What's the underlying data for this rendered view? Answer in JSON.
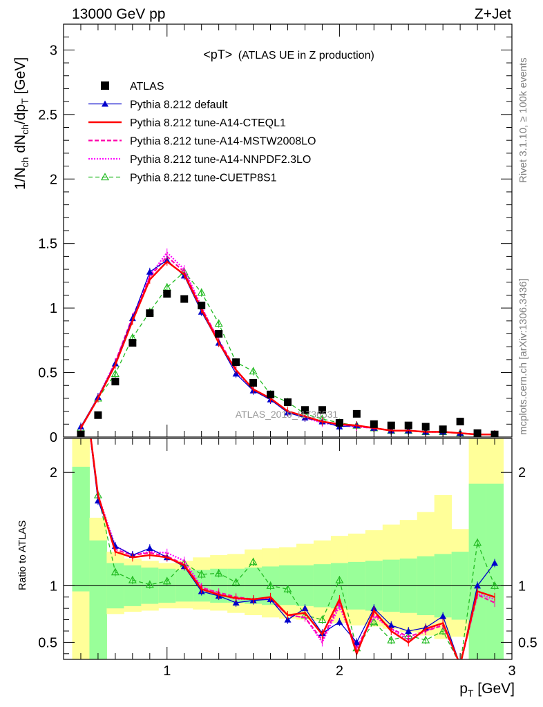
{
  "header": {
    "left": "13000 GeV pp",
    "right": "Z+Jet"
  },
  "side_text": {
    "top": "Rivet 3.1.10, ≥ 100k events",
    "bottom": "mcplots.cern.ch [arXiv:1306.3436]"
  },
  "plot_title": {
    "main": "<pT>",
    "sub": "(ATLAS UE in Z production)"
  },
  "watermark": "ATLAS_2019_I1736531",
  "ylabel_top": "1/N_ch dN_ch/dp_T [GeV]",
  "ylabel_bottom": "Ratio to ATLAS",
  "xlabel": "p_T [GeV]",
  "colors": {
    "atlas": "#000000",
    "default": "#0000cc",
    "cteql1": "#ff0000",
    "mstw": "#ff00aa",
    "nnpdf": "#ff00ff",
    "cuetp8s1": "#22bb22",
    "band_inner": "#99ff99",
    "band_outer": "#ffff99"
  },
  "legend": [
    {
      "key": "atlas",
      "label": "ATLAS"
    },
    {
      "key": "default",
      "label": "Pythia 8.212 default"
    },
    {
      "key": "cteql1",
      "label": "Pythia 8.212 tune-A14-CTEQL1"
    },
    {
      "key": "mstw",
      "label": "Pythia 8.212 tune-A14-MSTW2008LO"
    },
    {
      "key": "nnpdf",
      "label": "Pythia 8.212 tune-A14-NNPDF2.3LO"
    },
    {
      "key": "cuetp8s1",
      "label": "Pythia 8.212 tune-CUETP8S1"
    }
  ],
  "chart_data": {
    "type": "line",
    "xlim": [
      0.4,
      3.0
    ],
    "x_ticks": [
      "1",
      "2",
      "3"
    ],
    "top": {
      "ylim": [
        0,
        3.2
      ],
      "y_ticks": [
        "0",
        "0.5",
        "1",
        "1.5",
        "2",
        "2.5",
        "3"
      ]
    },
    "ratio": {
      "ylim": [
        0.35,
        2.3
      ],
      "y_ticks": [
        "0.5",
        "1",
        "2"
      ]
    },
    "x": [
      0.5,
      0.6,
      0.7,
      0.8,
      0.9,
      1.0,
      1.1,
      1.2,
      1.3,
      1.4,
      1.5,
      1.6,
      1.7,
      1.8,
      1.9,
      2.0,
      2.1,
      2.2,
      2.3,
      2.4,
      2.5,
      2.6,
      2.7,
      2.8,
      2.9
    ],
    "series": [
      {
        "key": "atlas",
        "name": "ATLAS",
        "values": [
          0.02,
          0.17,
          0.43,
          0.73,
          0.96,
          1.11,
          1.07,
          1.02,
          0.8,
          0.58,
          0.42,
          0.33,
          0.27,
          0.21,
          0.21,
          0.11,
          0.18,
          0.1,
          0.09,
          0.09,
          0.08,
          0.06,
          0.12,
          0.03,
          0.02
        ]
      },
      {
        "key": "default",
        "name": "Pythia 8.212 default",
        "values": [
          0.08,
          0.31,
          0.57,
          0.92,
          1.28,
          1.37,
          1.25,
          0.97,
          0.73,
          0.49,
          0.36,
          0.29,
          0.19,
          0.15,
          0.12,
          0.08,
          0.09,
          0.07,
          0.05,
          0.05,
          0.04,
          0.04,
          0.03,
          0.02,
          0.02
        ]
      },
      {
        "key": "cteql1",
        "name": "Pythia 8.212 tune-A14-CTEQL1",
        "values": [
          0.07,
          0.3,
          0.56,
          0.9,
          1.22,
          1.36,
          1.26,
          0.99,
          0.73,
          0.52,
          0.37,
          0.3,
          0.2,
          0.16,
          0.12,
          0.1,
          0.09,
          0.07,
          0.05,
          0.05,
          0.04,
          0.04,
          0.03,
          0.02,
          0.02
        ]
      },
      {
        "key": "mstw",
        "name": "Pythia 8.212 tune-A14-MSTW2008LO",
        "values": [
          0.07,
          0.3,
          0.58,
          0.93,
          1.24,
          1.4,
          1.28,
          1.0,
          0.75,
          0.52,
          0.37,
          0.29,
          0.2,
          0.15,
          0.12,
          0.09,
          0.08,
          0.07,
          0.05,
          0.05,
          0.04,
          0.04,
          0.03,
          0.02,
          0.02
        ]
      },
      {
        "key": "nnpdf",
        "name": "Pythia 8.212 tune-A14-NNPDF2.3LO",
        "values": [
          0.07,
          0.31,
          0.58,
          0.92,
          1.25,
          1.43,
          1.3,
          1.01,
          0.74,
          0.51,
          0.37,
          0.29,
          0.2,
          0.15,
          0.11,
          0.09,
          0.08,
          0.07,
          0.05,
          0.05,
          0.04,
          0.04,
          0.03,
          0.02,
          0.02
        ]
      },
      {
        "key": "cuetp8s1",
        "name": "Pythia 8.212 tune-CUETP8S1",
        "values": [
          0.07,
          0.3,
          0.49,
          0.77,
          0.97,
          1.16,
          1.28,
          1.12,
          0.88,
          0.58,
          0.51,
          0.33,
          0.27,
          0.18,
          0.14,
          0.11,
          0.09,
          0.07,
          0.05,
          0.05,
          0.04,
          0.04,
          0.03,
          0.02,
          0.02
        ]
      }
    ],
    "ratio_series": [
      {
        "key": "default",
        "values": [
          3.0,
          1.75,
          1.35,
          1.27,
          1.33,
          1.25,
          1.17,
          0.95,
          0.91,
          0.85,
          0.87,
          0.88,
          0.7,
          0.8,
          0.58,
          0.68,
          0.5,
          0.8,
          0.65,
          0.6,
          0.63,
          0.73,
          0.3,
          1.0,
          1.2
        ]
      },
      {
        "key": "cteql1",
        "values": [
          3.0,
          1.8,
          1.3,
          1.25,
          1.27,
          1.25,
          1.18,
          0.97,
          0.92,
          0.89,
          0.88,
          0.9,
          0.74,
          0.76,
          0.57,
          0.88,
          0.4,
          0.78,
          0.6,
          0.5,
          0.62,
          0.67,
          0.3,
          0.95,
          0.9
        ]
      },
      {
        "key": "mstw",
        "values": [
          3.0,
          1.78,
          1.32,
          1.27,
          1.29,
          1.26,
          1.19,
          0.98,
          0.94,
          0.9,
          0.88,
          0.88,
          0.74,
          0.72,
          0.52,
          0.85,
          0.45,
          0.75,
          0.62,
          0.55,
          0.6,
          0.65,
          0.3,
          0.92,
          0.85
        ]
      },
      {
        "key": "nnpdf",
        "values": [
          3.0,
          1.8,
          1.35,
          1.27,
          1.3,
          1.29,
          1.22,
          0.99,
          0.93,
          0.88,
          0.88,
          0.88,
          0.74,
          0.72,
          0.5,
          0.82,
          0.45,
          0.73,
          0.62,
          0.52,
          0.6,
          0.67,
          0.3,
          0.93,
          0.88
        ]
      },
      {
        "key": "cuetp8s1",
        "values": [
          3.0,
          1.8,
          1.12,
          1.05,
          1.01,
          1.04,
          1.2,
          1.1,
          1.11,
          1.03,
          1.21,
          1.0,
          0.97,
          0.74,
          0.7,
          1.05,
          0.45,
          0.68,
          0.52,
          0.56,
          0.52,
          0.6,
          0.3,
          1.38,
          1.0
        ]
      }
    ],
    "band_inner": [
      [
        0.95,
        2.05
      ],
      [
        0.35,
        1.4
      ],
      [
        0.8,
        1.2
      ],
      [
        0.82,
        1.18
      ],
      [
        0.84,
        1.16
      ],
      [
        0.85,
        1.15
      ],
      [
        0.86,
        1.14
      ],
      [
        0.86,
        1.14
      ],
      [
        0.85,
        1.15
      ],
      [
        0.85,
        1.15
      ],
      [
        0.84,
        1.16
      ],
      [
        0.83,
        1.17
      ],
      [
        0.83,
        1.18
      ],
      [
        0.82,
        1.18
      ],
      [
        0.81,
        1.19
      ],
      [
        0.8,
        1.2
      ],
      [
        0.79,
        1.21
      ],
      [
        0.78,
        1.22
      ],
      [
        0.77,
        1.23
      ],
      [
        0.76,
        1.24
      ],
      [
        0.74,
        1.26
      ],
      [
        0.72,
        1.28
      ],
      [
        0.7,
        1.3
      ],
      [
        0.35,
        1.9
      ],
      [
        0.35,
        1.9
      ]
    ],
    "band_outer": [
      [
        0.35,
        2.3
      ],
      [
        0.35,
        1.6
      ],
      [
        0.75,
        1.3
      ],
      [
        0.77,
        1.24
      ],
      [
        0.78,
        1.22
      ],
      [
        0.8,
        1.2
      ],
      [
        0.8,
        1.22
      ],
      [
        0.79,
        1.25
      ],
      [
        0.78,
        1.27
      ],
      [
        0.76,
        1.28
      ],
      [
        0.74,
        1.32
      ],
      [
        0.72,
        1.33
      ],
      [
        0.71,
        1.34
      ],
      [
        0.7,
        1.37
      ],
      [
        0.69,
        1.4
      ],
      [
        0.67,
        1.44
      ],
      [
        0.65,
        1.46
      ],
      [
        0.64,
        1.49
      ],
      [
        0.62,
        1.54
      ],
      [
        0.59,
        1.58
      ],
      [
        0.56,
        1.65
      ],
      [
        0.53,
        1.8
      ],
      [
        0.55,
        1.5
      ],
      [
        0.35,
        2.3
      ],
      [
        0.35,
        2.3
      ]
    ]
  }
}
